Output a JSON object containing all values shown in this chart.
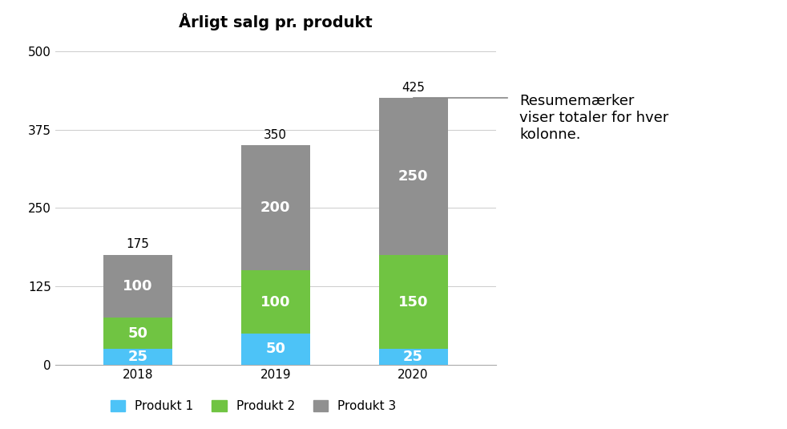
{
  "title": "Årligt salg pr. produkt",
  "years": [
    "2018",
    "2019",
    "2020"
  ],
  "produkt1": [
    25,
    50,
    25
  ],
  "produkt2": [
    50,
    100,
    150
  ],
  "produkt3": [
    100,
    200,
    250
  ],
  "totals": [
    175,
    350,
    425
  ],
  "color_p1": "#4dc3f7",
  "color_p2": "#70c442",
  "color_p3": "#909090",
  "ylabel_ticks": [
    0,
    125,
    250,
    375,
    500
  ],
  "ylim": [
    0,
    520
  ],
  "bar_width": 0.5,
  "legend_labels": [
    "Produkt 1",
    "Produkt 2",
    "Produkt 3"
  ],
  "annotation_text": "Resumemærker\nviser totaler for hver\nkolonne.",
  "title_fontsize": 14,
  "tick_fontsize": 11,
  "label_fontsize": 11,
  "segment_label_fontsize": 13,
  "total_label_fontsize": 11
}
